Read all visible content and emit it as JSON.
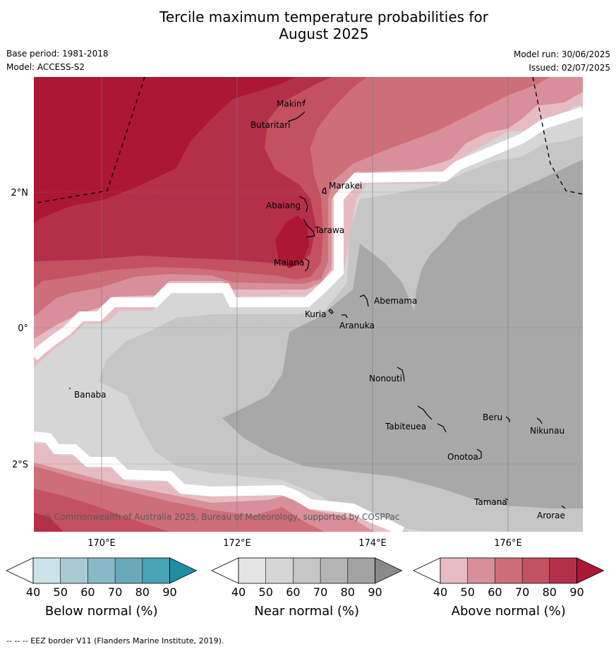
{
  "title_line1": "Tercile maximum temperature probabilities for",
  "title_line2": "August 2025",
  "base_period": "Base period: 1981-2018",
  "model": "Model: ACCESS-S2",
  "model_run": "Model run: 30/06/2025",
  "issued": "Issued: 02/07/2025",
  "copyright": "© Commonwealth of Australia 2025, Bureau of Meteorology, supported by COSPPac",
  "lon_labels": [
    "170°E",
    "172°E",
    "174°E",
    "176°E"
  ],
  "lat_labels": [
    "2°N",
    "0°",
    "2°S"
  ],
  "places": [
    "Makin",
    "Butaritari",
    "Marakei",
    "Abaiang",
    "Tarawa",
    "Maiana",
    "Abemama",
    "Kuria",
    "Aranuka",
    "Banaba",
    "Nonouti",
    "Beru",
    "Tabiteuea",
    "Nikunau",
    "Onotoa",
    "Tamana",
    "Arorae"
  ],
  "colorbars": [
    {
      "title": "Below normal (%)",
      "ticks": [
        "40",
        "50",
        "60",
        "70",
        "80",
        "90"
      ],
      "colors": [
        "#ffffff",
        "#cce3ea",
        "#a8cbd3",
        "#89b9c5",
        "#69a9ba",
        "#47a2b3",
        "#1f8ea3"
      ]
    },
    {
      "title": "Near normal (%)",
      "ticks": [
        "40",
        "50",
        "60",
        "70",
        "80",
        "90"
      ],
      "colors": [
        "#ffffff",
        "#e4e4e4",
        "#d6d6d6",
        "#c6c6c6",
        "#b4b4b4",
        "#a2a2a2",
        "#8a8a8a"
      ]
    },
    {
      "title": "Above normal (%)",
      "ticks": [
        "40",
        "50",
        "60",
        "70",
        "80",
        "90"
      ],
      "colors": [
        "#ffffff",
        "#e6bcc2",
        "#d88f99",
        "#cd6e78",
        "#c45160",
        "#b4304a",
        "#ac1734"
      ]
    }
  ],
  "eez_note": "--  --  -- EEZ border V11 (Flanders Marine Institute, 2019)."
}
